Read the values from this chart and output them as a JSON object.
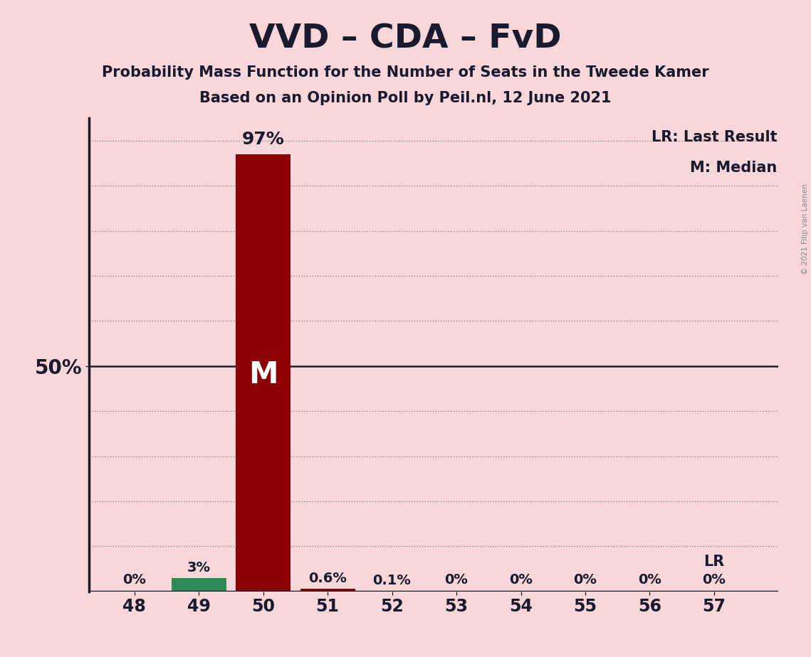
{
  "title": "VVD – CDA – FvD",
  "subtitle1": "Probability Mass Function for the Number of Seats in the Tweede Kamer",
  "subtitle2": "Based on an Opinion Poll by Peil.nl, 12 June 2021",
  "copyright": "© 2021 Filip van Laenen",
  "seats": [
    48,
    49,
    50,
    51,
    52,
    53,
    54,
    55,
    56,
    57
  ],
  "probabilities": [
    0.0,
    3.0,
    97.0,
    0.6,
    0.1,
    0.0,
    0.0,
    0.0,
    0.0,
    0.0
  ],
  "prob_labels": [
    "0%",
    "3%",
    "97%",
    "0.6%",
    "0.1%",
    "0%",
    "0%",
    "0%",
    "0%",
    "0%"
  ],
  "bar_colors": [
    "#8B0000",
    "#2E8B57",
    "#8B0000",
    "#8B0000",
    "#8B0000",
    "#8B0000",
    "#8B0000",
    "#8B0000",
    "#8B0000",
    "#8B0000"
  ],
  "median_seat": 50,
  "median_label": "M",
  "lr_seat": 57,
  "lr_label": "LR",
  "legend_lr": "LR: Last Result",
  "legend_m": "M: Median",
  "background_color": "#F8D7DA",
  "ylabel_50": "50%",
  "ylim": [
    0,
    105
  ],
  "title_fontsize": 34,
  "subtitle_fontsize": 15,
  "label_fontsize": 14,
  "tick_fontsize": 17,
  "legend_fontsize": 15,
  "copyright_fontsize": 7.5,
  "median_fontsize": 30
}
